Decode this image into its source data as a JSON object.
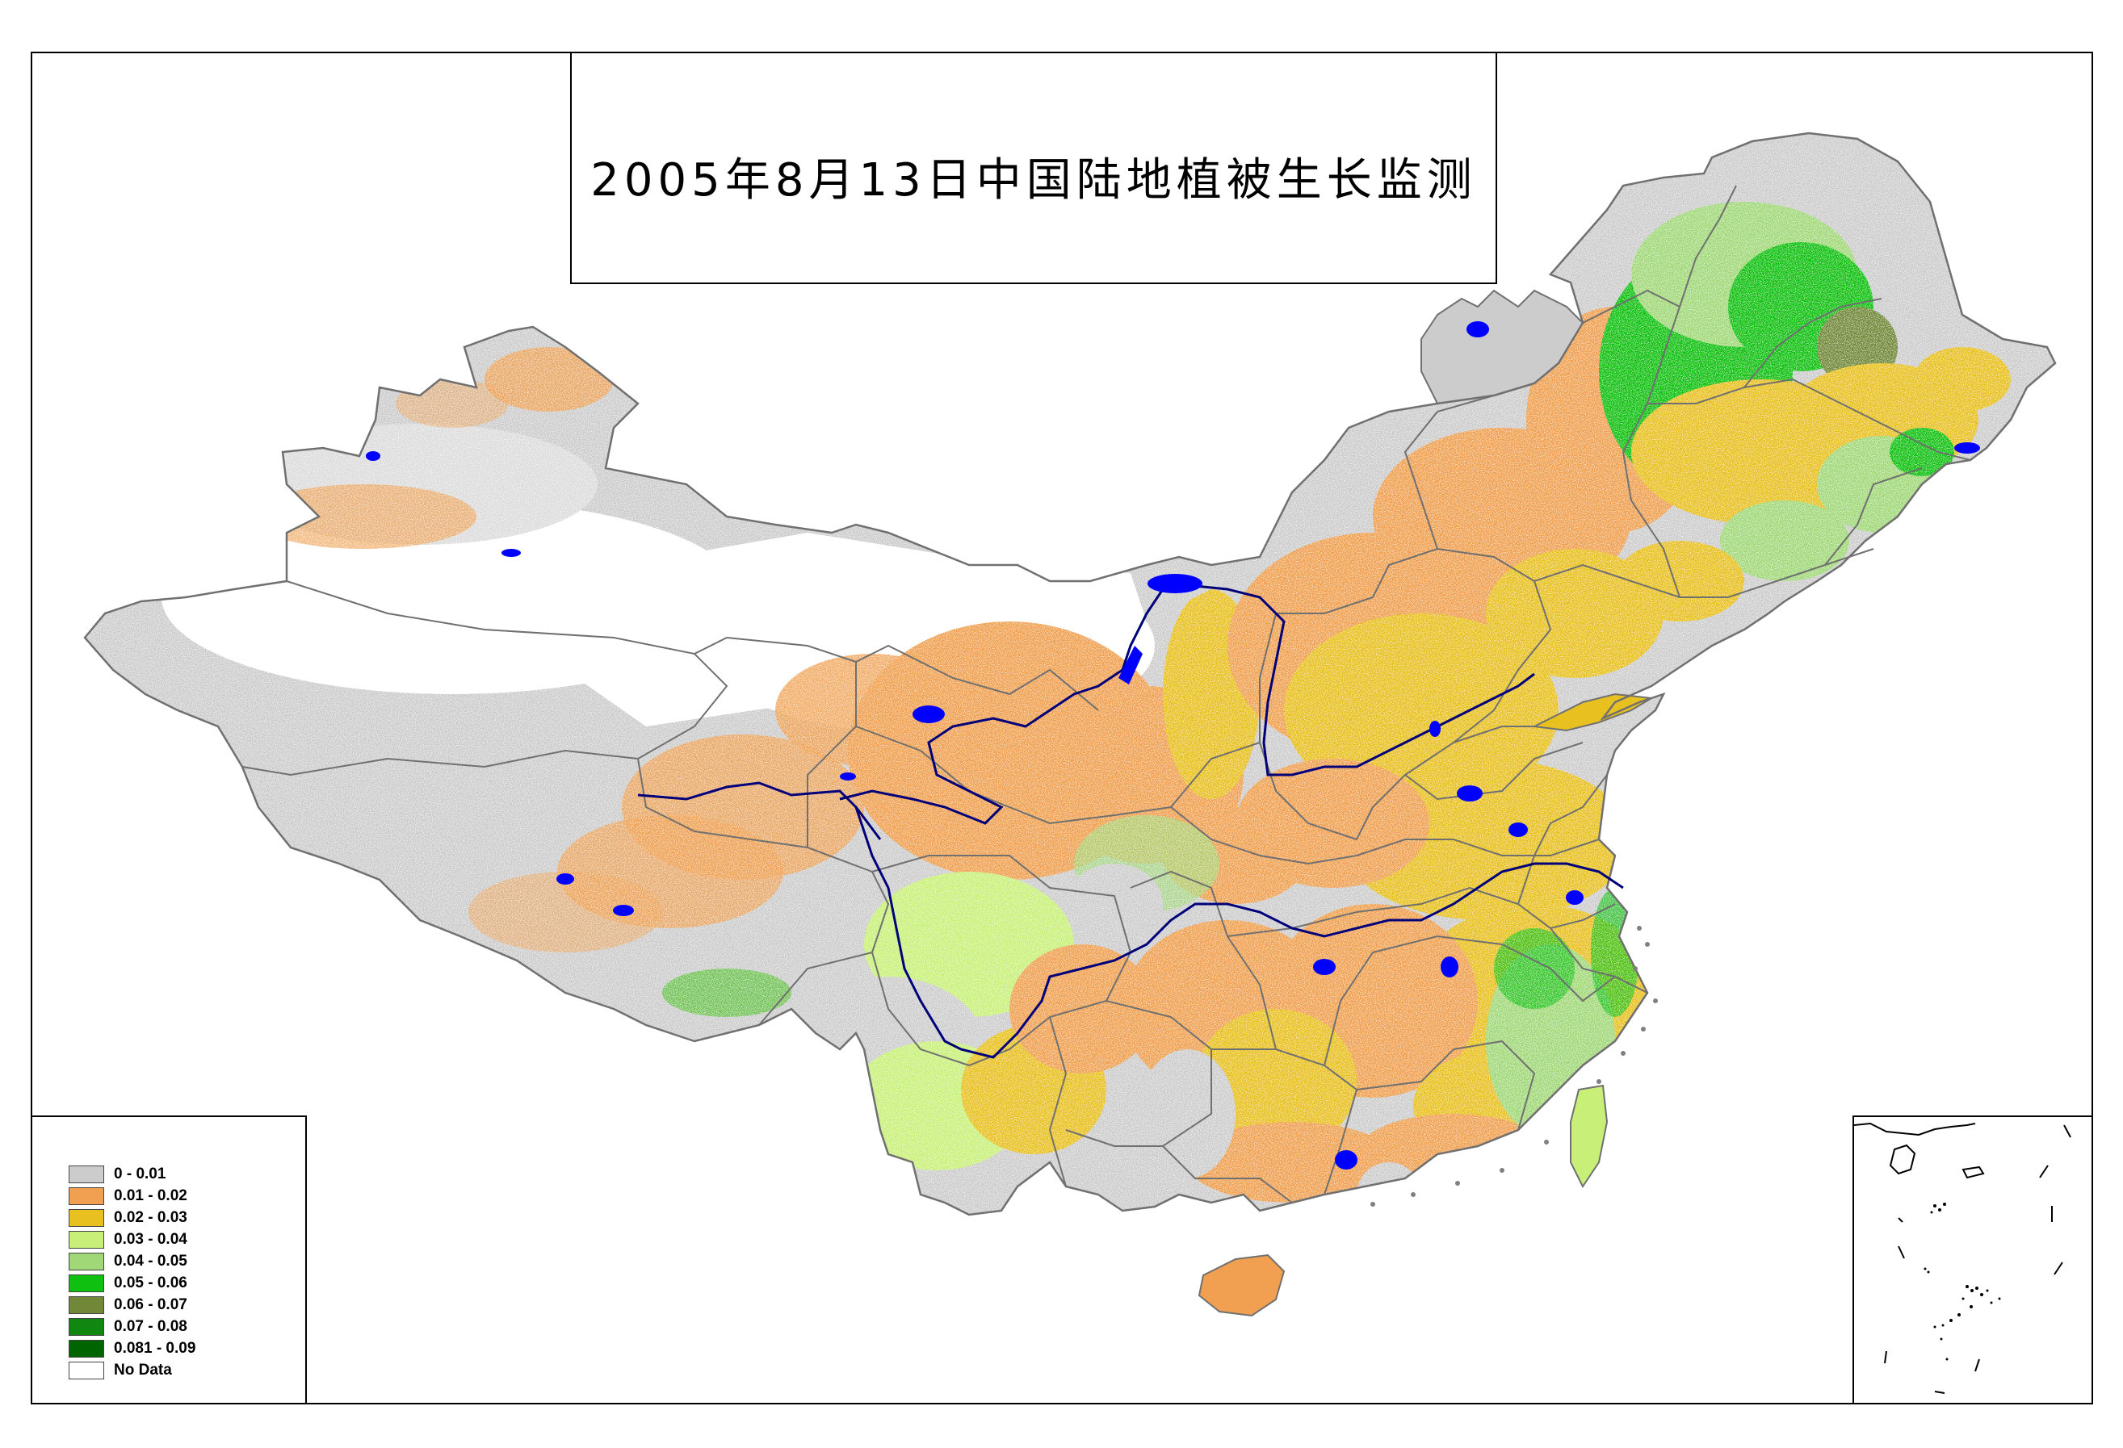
{
  "title": "2005年8月13日中国陆地植被生长监测",
  "legend": {
    "items": [
      {
        "label": "0 - 0.01",
        "color": "#cccccc"
      },
      {
        "label": "0.01 - 0.02",
        "color": "#f0a050"
      },
      {
        "label": "0.02 - 0.03",
        "color": "#e8c020"
      },
      {
        "label": "0.03 - 0.04",
        "color": "#c8f078"
      },
      {
        "label": "0.04 - 0.05",
        "color": "#a0d878"
      },
      {
        "label": "0.05 - 0.06",
        "color": "#10c010"
      },
      {
        "label": "0.06 - 0.07",
        "color": "#708838"
      },
      {
        "label": "0.07 - 0.08",
        "color": "#108810"
      },
      {
        "label": "0.081 - 0.09",
        "color": "#006400"
      },
      {
        "label": "No Data",
        "color": "#ffffff"
      }
    ]
  },
  "colors": {
    "water": "#0000ff",
    "river": "#00007a",
    "boundary": "#707070"
  }
}
